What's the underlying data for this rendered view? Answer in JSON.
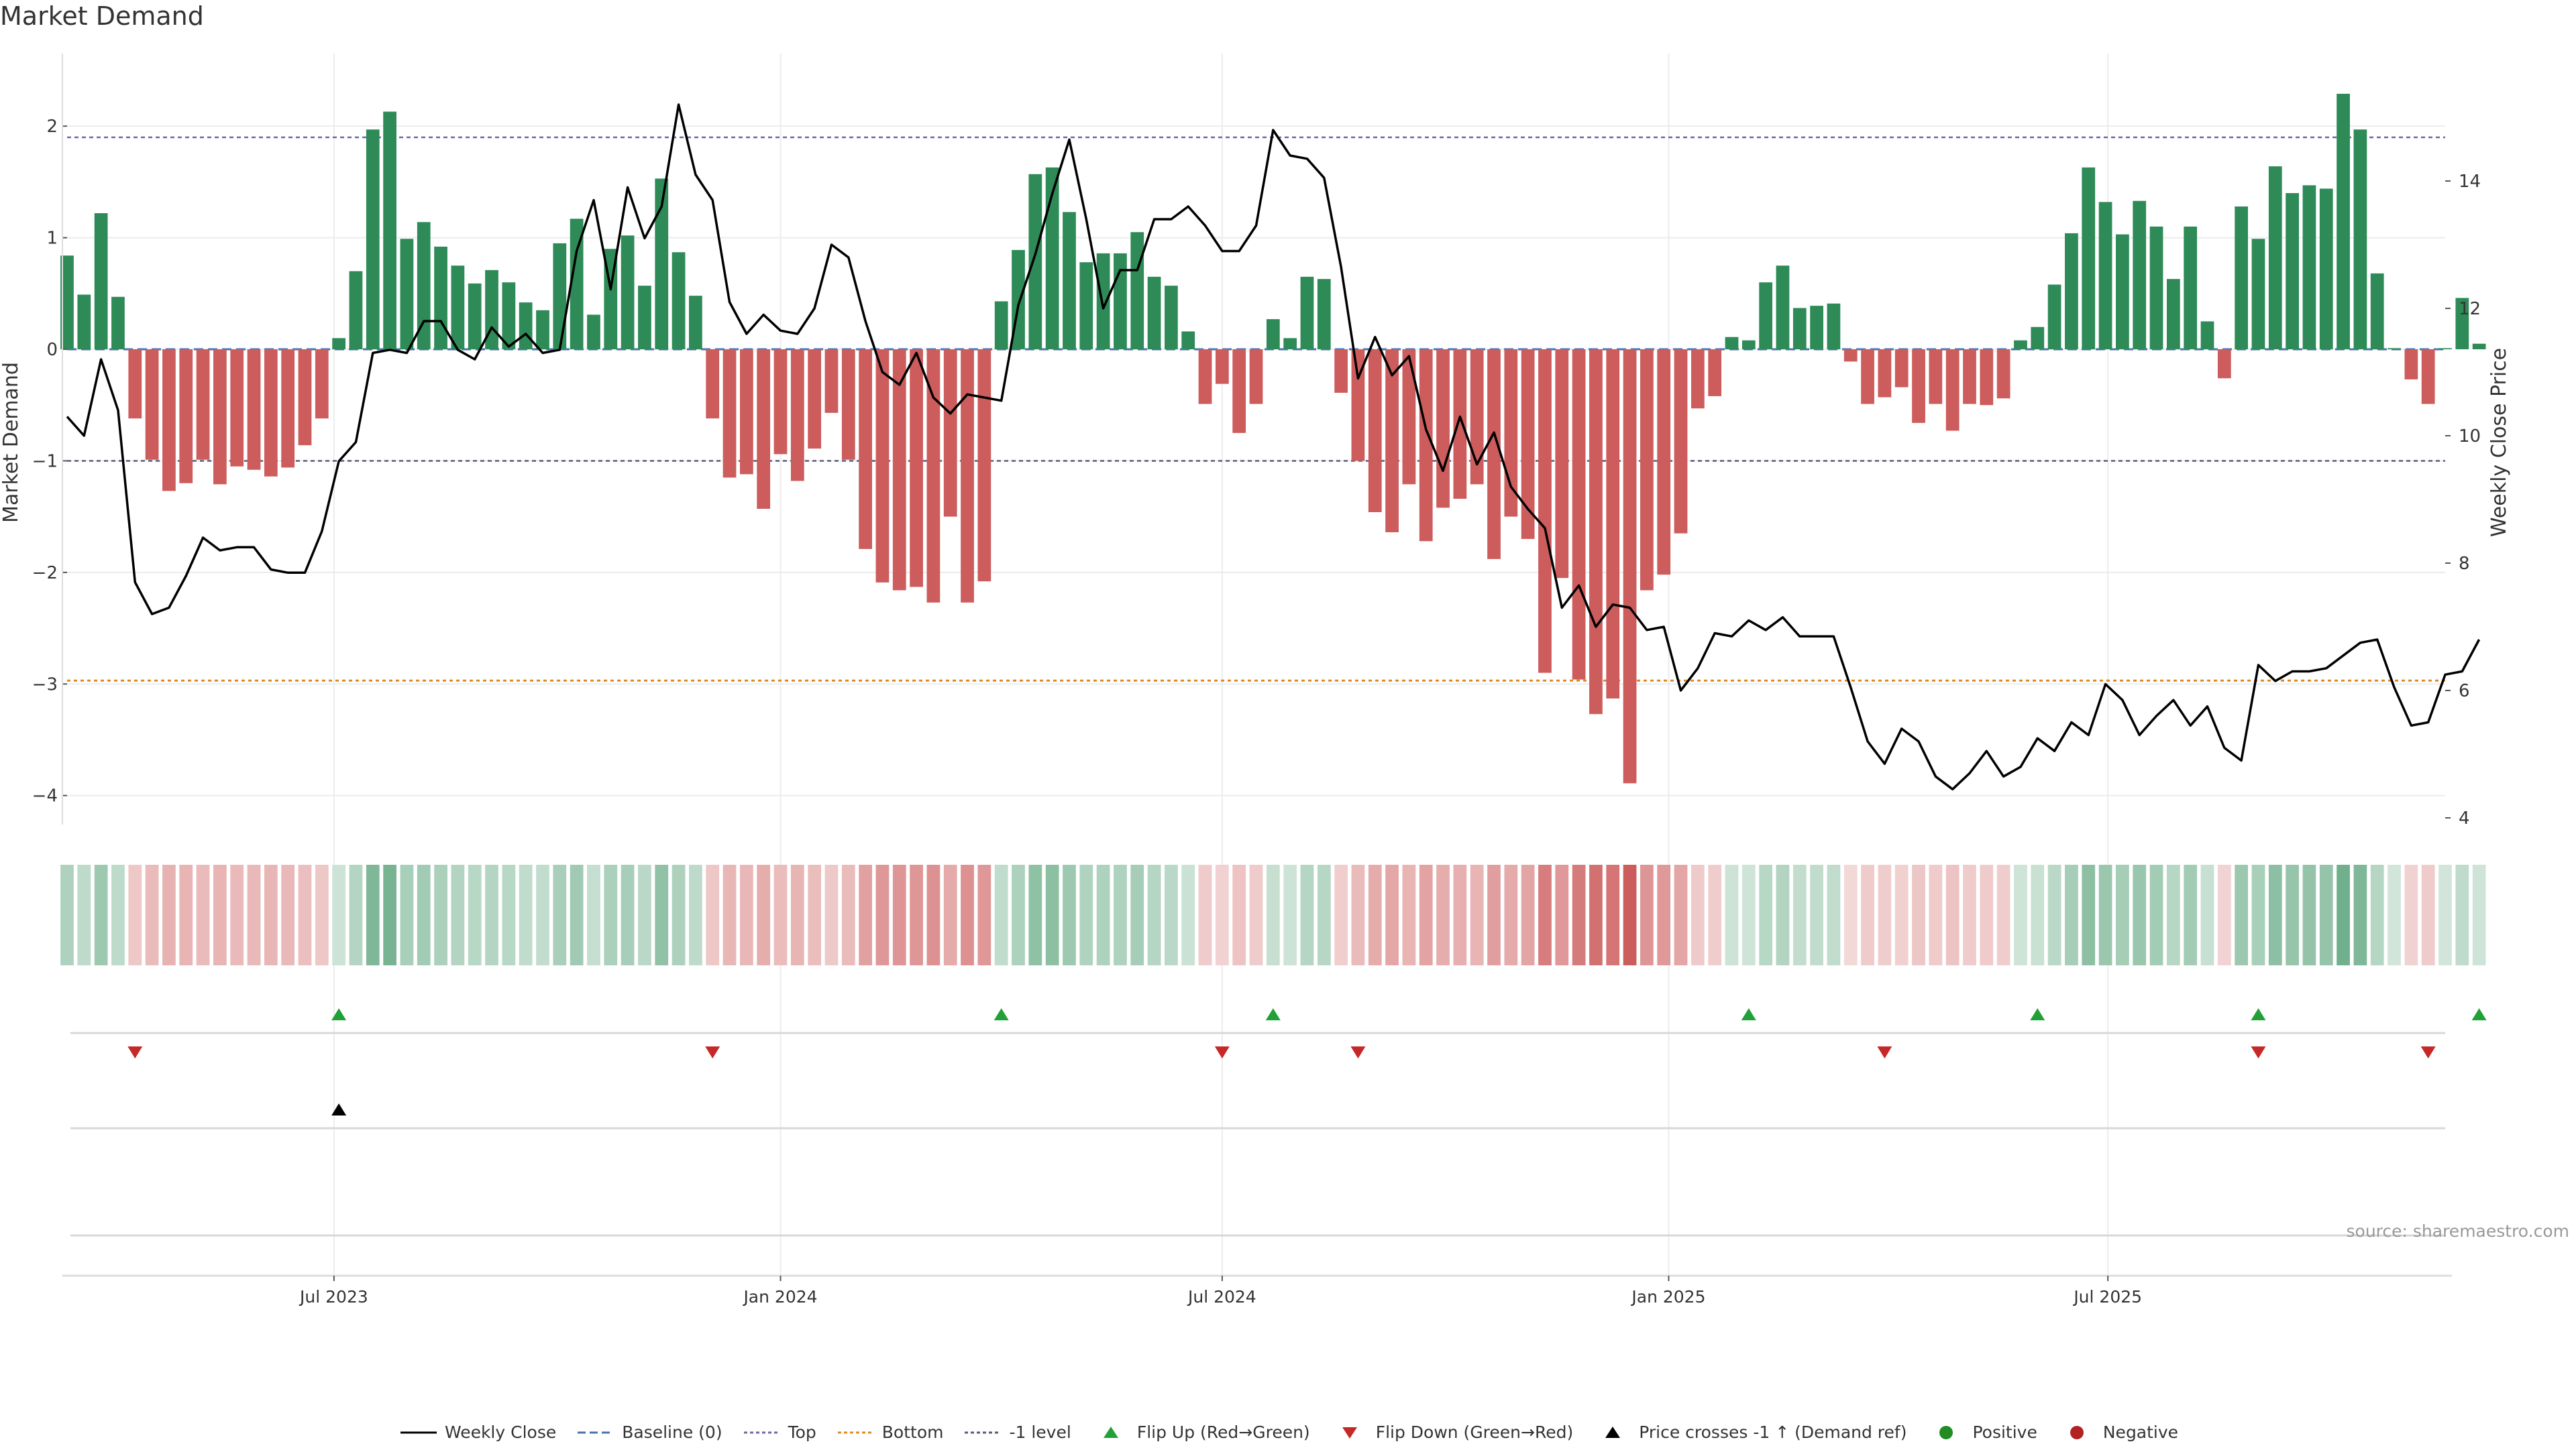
{
  "chart_data": {
    "type": "bar",
    "title": "Market Demand",
    "ylabel": "Market Demand",
    "y2label": "Weekly Close Price",
    "ylim": [
      -4.2,
      2.65
    ],
    "y2lim": [
      4,
      16.0
    ],
    "yticks": [
      "2",
      "1",
      "0",
      "−1",
      "−2",
      "−3",
      "−4"
    ],
    "y2ticks": [
      "14",
      "12",
      "10",
      "8",
      "6",
      "4"
    ],
    "x_start": "2023-03-13",
    "x_end": "2025-11-17",
    "x_tick_labels": [
      {
        "date": "2023-07-01",
        "label": "Jul 2023"
      },
      {
        "date": "2024-01-01",
        "label": "Jan 2024"
      },
      {
        "date": "2024-07-01",
        "label": "Jul 2024"
      },
      {
        "date": "2025-01-01",
        "label": "Jan 2025"
      },
      {
        "date": "2025-07-01",
        "label": "Jul 2025"
      }
    ],
    "reference_lines": {
      "baseline": 0,
      "top": 1.9,
      "bottom": -2.97,
      "minus_one_level": -1
    },
    "series": [
      {
        "name": "Market Demand",
        "values": [
          0.84,
          0.49,
          1.22,
          0.47,
          -0.62,
          -0.99,
          -1.27,
          -1.2,
          -0.99,
          -1.21,
          -1.05,
          -1.08,
          -1.14,
          -1.06,
          -0.86,
          -0.62,
          0.1,
          0.7,
          1.97,
          2.13,
          0.99,
          1.14,
          0.92,
          0.75,
          0.59,
          0.71,
          0.6,
          0.42,
          0.35,
          0.95,
          1.17,
          0.31,
          0.9,
          1.02,
          0.57,
          1.53,
          0.87,
          0.48,
          -0.62,
          -1.15,
          -1.12,
          -1.43,
          -0.94,
          -1.18,
          -0.89,
          -0.57,
          -0.99,
          -1.79,
          -2.09,
          -2.16,
          -2.13,
          -2.27,
          -1.5,
          -2.27,
          -2.08,
          0.43,
          0.89,
          1.57,
          1.63,
          1.23,
          0.78,
          0.86,
          0.86,
          1.05,
          0.65,
          0.57,
          0.16,
          -0.49,
          -0.31,
          -0.75,
          -0.49,
          0.27,
          0.1,
          0.65,
          0.63,
          -0.39,
          -1.0,
          -1.46,
          -1.64,
          -1.21,
          -1.72,
          -1.42,
          -1.34,
          -1.21,
          -1.88,
          -1.5,
          -1.7,
          -2.9,
          -2.05,
          -2.96,
          -3.27,
          -3.13,
          -3.89,
          -2.16,
          -2.02,
          -1.65,
          -0.53,
          -0.42,
          0.11,
          0.08,
          0.6,
          0.75,
          0.37,
          0.39,
          0.41,
          -0.11,
          -0.49,
          -0.43,
          -0.34,
          -0.66,
          -0.49,
          -0.73,
          -0.49,
          -0.5,
          -0.44,
          0.08,
          0.2,
          0.58,
          1.04,
          1.63,
          1.32,
          1.03,
          1.33,
          1.1,
          0.63,
          1.1,
          0.25,
          -0.26,
          1.28,
          0.99,
          1.64,
          1.4,
          1.47,
          1.44,
          2.29,
          1.97,
          0.68,
          0.01,
          -0.27,
          -0.49,
          0.01,
          0.46,
          0.05
        ]
      },
      {
        "name": "Weekly Close",
        "values": [
          10.3,
          10.0,
          11.2,
          10.4,
          7.7,
          7.2,
          7.3,
          7.8,
          8.4,
          8.2,
          8.25,
          8.25,
          7.9,
          7.85,
          7.85,
          8.5,
          9.6,
          9.9,
          11.3,
          11.35,
          11.3,
          11.8,
          11.8,
          11.35,
          11.2,
          11.7,
          11.4,
          11.6,
          11.3,
          11.35,
          12.9,
          13.7,
          12.3,
          13.9,
          13.1,
          13.6,
          15.2,
          14.1,
          13.7,
          12.1,
          11.6,
          11.9,
          11.65,
          11.6,
          12.0,
          13.0,
          12.8,
          11.8,
          11.0,
          10.8,
          11.3,
          10.6,
          10.35,
          10.65,
          10.6,
          10.55,
          12.05,
          12.85,
          13.8,
          14.65,
          13.4,
          12.0,
          12.6,
          12.6,
          13.4,
          13.4,
          13.6,
          13.3,
          12.9,
          12.9,
          13.3,
          14.8,
          14.4,
          14.35,
          14.05,
          12.65,
          10.9,
          11.55,
          10.95,
          11.25,
          10.1,
          9.45,
          10.3,
          9.55,
          10.05,
          9.2,
          8.85,
          8.55,
          7.3,
          7.65,
          7.0,
          7.35,
          7.3,
          6.95,
          7.0,
          6.0,
          6.35,
          6.9,
          6.85,
          7.1,
          6.95,
          7.15,
          6.85,
          6.85,
          6.85,
          6.05,
          5.2,
          4.85,
          5.4,
          5.2,
          4.65,
          4.45,
          4.7,
          5.05,
          4.65,
          4.8,
          5.25,
          5.05,
          5.5,
          5.3,
          6.1,
          5.85,
          5.3,
          5.6,
          5.85,
          5.45,
          5.75,
          5.1,
          4.9,
          6.4,
          6.15,
          6.3,
          6.3,
          6.35,
          6.55,
          6.75,
          6.8,
          6.05,
          5.45,
          5.5,
          6.25,
          6.3,
          6.8
        ]
      }
    ],
    "flip_up_indices": [
      16,
      55,
      71,
      99,
      116,
      129,
      142
    ],
    "flip_down_indices": [
      4,
      38,
      68,
      76,
      107,
      129,
      139
    ],
    "price_cross_indices": [
      16
    ],
    "colors": {
      "positive": "#2e8b57",
      "negative": "#cd5c5c",
      "line": "#000000",
      "baseline": "#4a72b0",
      "top": "#6a6aa6",
      "bottom": "#e08a1e",
      "minus_one": "#5a5a7a",
      "flip_up": "#21a038",
      "flip_down": "#c62828",
      "cross": "#000000",
      "positive_dot": "#228b22",
      "negative_dot": "#b22222"
    }
  },
  "legend": [
    {
      "label": "Weekly Close",
      "symbol": "solid-line",
      "color": "#000000"
    },
    {
      "label": "Baseline (0)",
      "symbol": "dashed-line",
      "color": "#4a72b0"
    },
    {
      "label": "Top",
      "symbol": "dotted-line",
      "color": "#6a6aa6"
    },
    {
      "label": "Bottom",
      "symbol": "dotted-line",
      "color": "#e08a1e"
    },
    {
      "label": "-1 level",
      "symbol": "dotted-line",
      "color": "#5a5a7a"
    },
    {
      "label": "Flip Up (Red→Green)",
      "symbol": "triangle-up",
      "color": "#21a038"
    },
    {
      "label": "Flip Down (Green→Red)",
      "symbol": "triangle-down",
      "color": "#c62828"
    },
    {
      "label": "Price crosses -1 ↑ (Demand ref)",
      "symbol": "triangle-up",
      "color": "#000000"
    },
    {
      "label": "Positive",
      "symbol": "dot",
      "color": "#228b22"
    },
    {
      "label": "Negative",
      "symbol": "dot",
      "color": "#b22222"
    }
  ],
  "source": "source: sharemaestro.com"
}
